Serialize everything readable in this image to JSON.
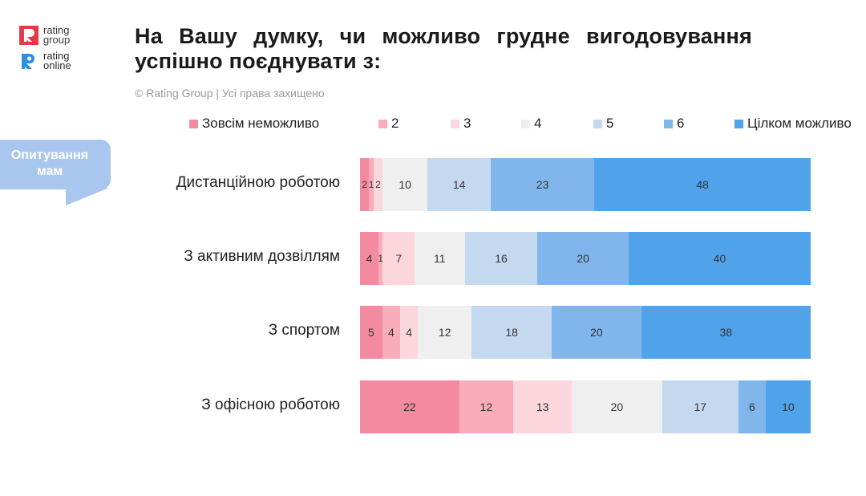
{
  "logo": {
    "brand1_line1": "rating",
    "brand1_line2": "group",
    "brand2_line1": "rating",
    "brand2_line2": "online"
  },
  "title": "На Вашу думку, чи можливо грудне вигодовування успішно поєднувати з:",
  "copyright": "© Rating Group | Усі права захищено",
  "badge": {
    "line1": "Опитування",
    "line2": "мам"
  },
  "colors": {
    "brand_red": "#e63946",
    "brand_blue": "#2e8ee0",
    "badge": "#a8c6ee",
    "series": [
      "#f48aa0",
      "#f9adba",
      "#fcd6dd",
      "#efefef",
      "#c4d9ef",
      "#80b6ec",
      "#50a3ea"
    ]
  },
  "chart_data": {
    "type": "bar",
    "orientation": "horizontal",
    "stacked": true,
    "title": "На Вашу думку, чи можливо грудне вигодовування успішно поєднувати з:",
    "xlabel": "",
    "ylabel": "",
    "xlim": [
      0,
      100
    ],
    "legend_position": "top",
    "categories": [
      "Дистанційною роботою",
      "З активним дозвіллям",
      "З спортом",
      "З офісною роботою"
    ],
    "series": [
      {
        "name": "Зовсім неможливо",
        "values": [
          2,
          4,
          5,
          22
        ]
      },
      {
        "name": "2",
        "values": [
          1,
          1,
          4,
          12
        ]
      },
      {
        "name": "3",
        "values": [
          2,
          7,
          4,
          13
        ]
      },
      {
        "name": "4",
        "values": [
          10,
          11,
          12,
          20
        ]
      },
      {
        "name": "5",
        "values": [
          14,
          16,
          18,
          17
        ]
      },
      {
        "name": "6",
        "values": [
          23,
          20,
          20,
          6
        ]
      },
      {
        "name": "Цілком можливо",
        "values": [
          48,
          40,
          38,
          10
        ]
      }
    ]
  }
}
